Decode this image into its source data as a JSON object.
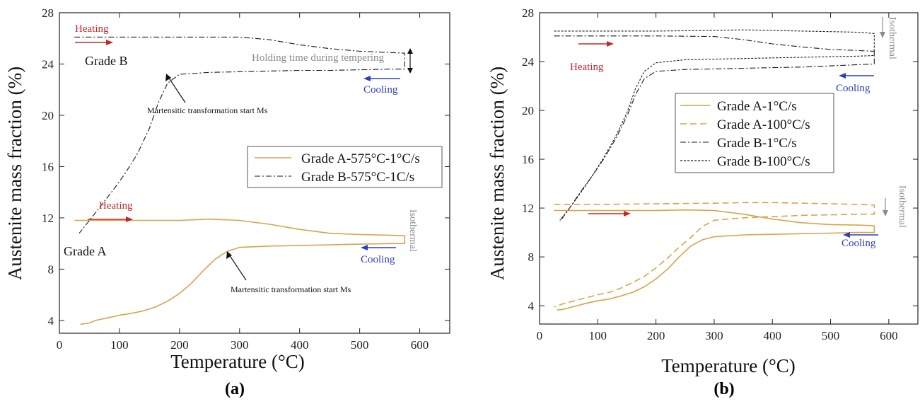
{
  "colors": {
    "gradeA": "#d8a44a",
    "gradeB": "#1a1a1a",
    "heating": "#c0282a",
    "cooling": "#2a3fbf",
    "isothermal": "#8c8c8c"
  },
  "chart_data": [
    {
      "type": "line",
      "caption": "(a)",
      "xlabel": "Temperature (°C)",
      "ylabel": "Austenite mass fraction (%)",
      "xlim": [
        0,
        650
      ],
      "ylim": [
        3,
        28
      ],
      "xticks": [
        0,
        100,
        200,
        300,
        400,
        500,
        600
      ],
      "yticks": [
        4,
        8,
        12,
        16,
        20,
        24,
        28
      ],
      "legend_position": "center-right",
      "series": [
        {
          "name": "Grade A-575°C-1°C/s",
          "style": "solid",
          "color_key": "gradeA",
          "x": [
            25,
            50,
            100,
            150,
            200,
            250,
            300,
            350,
            400,
            450,
            500,
            550,
            575,
            575,
            560,
            500,
            450,
            400,
            350,
            300,
            280,
            260,
            240,
            220,
            200,
            180,
            160,
            140,
            120,
            100,
            80,
            60,
            50,
            35
          ],
          "y": [
            11.8,
            11.8,
            11.8,
            11.8,
            11.8,
            11.9,
            11.8,
            11.5,
            11.1,
            10.8,
            10.7,
            10.65,
            10.6,
            10.0,
            10.0,
            9.95,
            9.9,
            9.85,
            9.8,
            9.7,
            9.4,
            8.8,
            7.9,
            6.9,
            6.1,
            5.5,
            5.05,
            4.75,
            4.55,
            4.4,
            4.2,
            4.0,
            3.8,
            3.7
          ]
        },
        {
          "name": "Grade B-575°C-1C/s",
          "style": "dashdot",
          "color_key": "gradeB",
          "x": [
            25,
            100,
            200,
            300,
            350,
            400,
            450,
            500,
            550,
            575,
            575,
            550,
            500,
            450,
            400,
            350,
            300,
            250,
            200,
            180,
            165,
            150,
            130,
            110,
            90,
            70,
            50,
            33
          ],
          "y": [
            26.1,
            26.1,
            26.1,
            26.1,
            25.9,
            25.5,
            25.2,
            25.0,
            24.9,
            24.85,
            23.6,
            23.6,
            23.55,
            23.5,
            23.5,
            23.45,
            23.4,
            23.35,
            23.2,
            22.5,
            21.0,
            19.0,
            17.0,
            15.5,
            14.2,
            13.0,
            11.8,
            10.8
          ]
        }
      ]
    },
    {
      "type": "line",
      "caption": "(b)",
      "xlabel": "Temperature (°C)",
      "ylabel": "Austenite mass fraction (%)",
      "xlim": [
        0,
        650
      ],
      "ylim": [
        2.5,
        28
      ],
      "xticks": [
        0,
        100,
        200,
        300,
        400,
        500,
        600
      ],
      "yticks": [
        4,
        8,
        12,
        16,
        20,
        24,
        28
      ],
      "legend_position": "center",
      "series": [
        {
          "name": "Grade A-1°C/s",
          "style": "solid",
          "color_key": "gradeA",
          "x": [
            25,
            50,
            100,
            150,
            200,
            250,
            300,
            350,
            400,
            450,
            500,
            550,
            575,
            575,
            550,
            500,
            450,
            400,
            350,
            300,
            280,
            260,
            240,
            220,
            200,
            180,
            160,
            140,
            120,
            100,
            80,
            60,
            40,
            30
          ],
          "y": [
            11.8,
            11.8,
            11.8,
            11.8,
            11.8,
            11.85,
            11.8,
            11.5,
            11.1,
            10.8,
            10.65,
            10.6,
            10.55,
            10.0,
            10.0,
            9.95,
            9.9,
            9.85,
            9.8,
            9.65,
            9.4,
            8.9,
            8.0,
            7.0,
            6.2,
            5.55,
            5.1,
            4.8,
            4.55,
            4.4,
            4.2,
            3.95,
            3.7,
            3.65
          ]
        },
        {
          "name": "Grade A-100°C/s",
          "style": "dashed",
          "color_key": "gradeA",
          "x": [
            25,
            100,
            200,
            300,
            350,
            400,
            450,
            500,
            550,
            575,
            575,
            550,
            500,
            450,
            400,
            350,
            300,
            280,
            260,
            240,
            220,
            200,
            180,
            160,
            140,
            120,
            100,
            80,
            60,
            40,
            25
          ],
          "y": [
            12.3,
            12.3,
            12.35,
            12.4,
            12.45,
            12.45,
            12.4,
            12.35,
            12.3,
            12.25,
            11.5,
            11.5,
            11.45,
            11.4,
            11.3,
            11.2,
            11.0,
            10.5,
            9.6,
            8.8,
            7.9,
            7.1,
            6.4,
            5.9,
            5.45,
            5.1,
            4.9,
            4.65,
            4.4,
            4.15,
            3.9
          ]
        },
        {
          "name": "Grade B-1°C/s",
          "style": "dashdot",
          "color_key": "gradeB",
          "x": [
            25,
            100,
            200,
            300,
            350,
            400,
            450,
            500,
            550,
            575,
            575,
            550,
            500,
            450,
            400,
            350,
            300,
            250,
            200,
            180,
            165,
            150,
            130,
            110,
            90,
            70,
            50,
            35
          ],
          "y": [
            26.1,
            26.1,
            26.1,
            26.05,
            25.8,
            25.45,
            25.2,
            25.0,
            24.9,
            24.85,
            23.8,
            23.75,
            23.65,
            23.55,
            23.5,
            23.45,
            23.4,
            23.35,
            23.2,
            22.6,
            21.3,
            19.5,
            17.6,
            16.0,
            14.6,
            13.3,
            11.9,
            10.9
          ]
        },
        {
          "name": "Grade B-100°C/s",
          "style": "dotted",
          "color_key": "gradeB",
          "x": [
            25,
            100,
            200,
            300,
            350,
            400,
            450,
            500,
            550,
            575,
            575,
            550,
            500,
            450,
            400,
            350,
            300,
            250,
            200,
            180,
            165,
            150,
            130,
            110,
            90,
            70,
            50,
            35
          ],
          "y": [
            26.5,
            26.5,
            26.5,
            26.55,
            26.6,
            26.55,
            26.5,
            26.45,
            26.4,
            26.3,
            24.5,
            24.45,
            24.4,
            24.35,
            24.3,
            24.25,
            24.2,
            24.15,
            23.9,
            23.2,
            21.8,
            19.8,
            17.8,
            16.1,
            14.6,
            13.2,
            11.9,
            11.0
          ]
        }
      ]
    }
  ],
  "annotations_a": {
    "heating_top": "Heating",
    "grade_b": "Grade B",
    "holding": "Holding time during tempering",
    "cooling_top": "Cooling",
    "ms_b": "Martensitic transformation start Ms",
    "heating_bottom": "Heating",
    "grade_a": "Grade A",
    "isothermal": "Isothermal",
    "cooling_bottom": "Cooling",
    "ms_a": "Martensitic transformation start Ms"
  },
  "annotations_b": {
    "heating": "Heating",
    "isothermal_top": "Isothermal",
    "cooling_top": "Cooling",
    "isothermal_bottom": "Isothermal",
    "cooling_bottom": "Cooling"
  }
}
